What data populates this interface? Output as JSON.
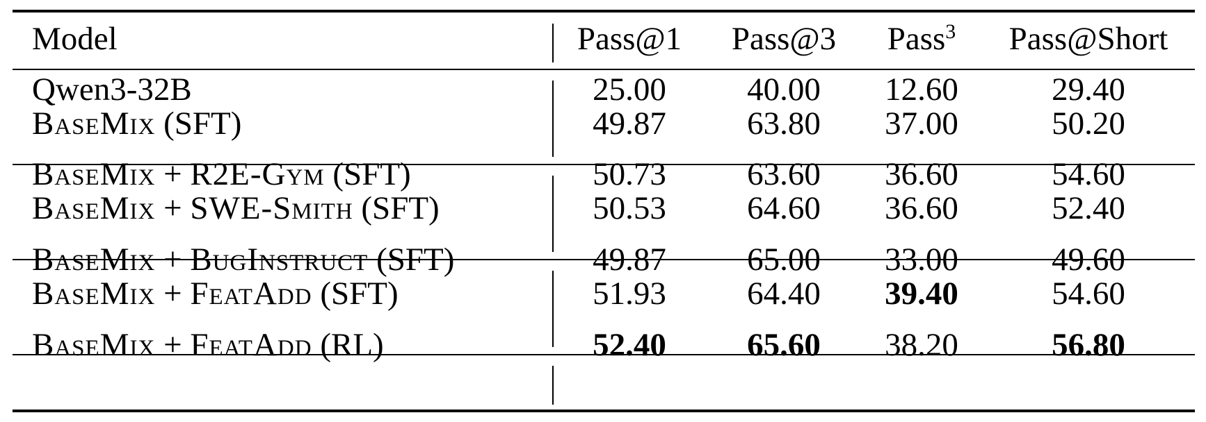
{
  "table": {
    "header": {
      "model": "Model",
      "pass1": "Pass@1",
      "pass3": "Pass@3",
      "pass_cubed_base": "Pass",
      "pass_cubed_exp": "3",
      "pass_short": "Pass@Short"
    },
    "rows": [
      {
        "model_parts": [
          "Qwen3-32B"
        ],
        "pass1": "25.00",
        "pass3": "40.00",
        "pass_cubed": "12.60",
        "pass_short": "29.40",
        "bold": [
          false,
          false,
          false,
          false
        ]
      },
      {
        "model_parts": [
          "BaseMix",
          " (SFT)"
        ],
        "pass1": "49.87",
        "pass3": "63.80",
        "pass_cubed": "37.00",
        "pass_short": "50.20",
        "bold": [
          false,
          false,
          false,
          false
        ]
      },
      {
        "model_parts": [
          "BaseMix",
          " + ",
          "R2E-Gym",
          " (SFT)"
        ],
        "pass1": "50.73",
        "pass3": "63.60",
        "pass_cubed": "36.60",
        "pass_short": "54.60",
        "bold": [
          false,
          false,
          false,
          false
        ]
      },
      {
        "model_parts": [
          "BaseMix",
          " + ",
          "SWE-Smith",
          " (SFT)"
        ],
        "pass1": "50.53",
        "pass3": "64.60",
        "pass_cubed": "36.60",
        "pass_short": "52.40",
        "bold": [
          false,
          false,
          false,
          false
        ]
      },
      {
        "model_parts": [
          "BaseMix",
          " + ",
          "BugInstruct",
          " (SFT)"
        ],
        "pass1": "49.87",
        "pass3": "65.00",
        "pass_cubed": "33.00",
        "pass_short": "49.60",
        "bold": [
          false,
          false,
          false,
          false
        ]
      },
      {
        "model_parts": [
          "BaseMix",
          " + ",
          "FeatAdd",
          " (SFT)"
        ],
        "pass1": "51.93",
        "pass3": "64.40",
        "pass_cubed": "39.40",
        "pass_short": "54.60",
        "bold": [
          false,
          false,
          true,
          false
        ]
      },
      {
        "model_parts": [
          "BaseMix",
          " + ",
          "FeatAdd",
          " (RL)"
        ],
        "pass1": "52.40",
        "pass3": "65.60",
        "pass_cubed": "38.20",
        "pass_short": "56.80",
        "bold": [
          true,
          true,
          false,
          true
        ]
      }
    ]
  }
}
